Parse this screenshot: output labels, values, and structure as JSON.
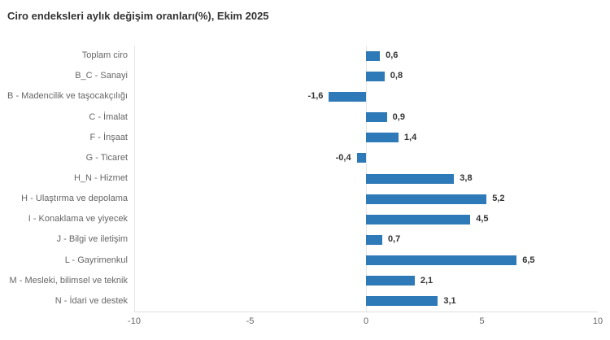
{
  "title": "Ciro endeksleri aylık değişim oranları(%), Ekim 2025",
  "colors": {
    "bar_fill": "#2e7ab8",
    "title_text": "#333333",
    "category_text": "#666666",
    "value_text": "#333333",
    "axis_line": "#e6e6e6"
  },
  "chart_data": {
    "type": "bar",
    "orientation": "horizontal",
    "title": "Ciro endeksleri aylık değişim oranları(%), Ekim 2025",
    "categories": [
      "Toplam ciro",
      "B_C - Sanayi",
      "B - Madencilik ve taşocakçılığı",
      "C - İmalat",
      "F - İnşaat",
      "G - Ticaret",
      "H_N - Hizmet",
      "H - Ulaştırma ve depolama",
      "I - Konaklama ve yiyecek",
      "J - Bilgi ve iletişim",
      "L - Gayrimenkul",
      "M - Mesleki, bilimsel ve teknik",
      "N - İdari ve destek"
    ],
    "values": [
      0.6,
      0.8,
      -1.6,
      0.9,
      1.4,
      -0.4,
      3.8,
      5.2,
      4.5,
      0.7,
      6.5,
      2.1,
      3.1
    ],
    "value_labels": [
      "0,6",
      "0,8",
      "-1,6",
      "0,9",
      "1,4",
      "-0,4",
      "3,8",
      "5,2",
      "4,5",
      "0,7",
      "6,5",
      "2,1",
      "3,1"
    ],
    "xlabel": "",
    "ylabel": "",
    "xlim": [
      -10,
      10
    ],
    "x_ticks": [
      -10,
      -5,
      0,
      5,
      10
    ],
    "x_tick_labels": [
      "-10",
      "-5",
      "0",
      "5",
      "10"
    ],
    "grid": "zero-line-only",
    "legend": "none"
  }
}
